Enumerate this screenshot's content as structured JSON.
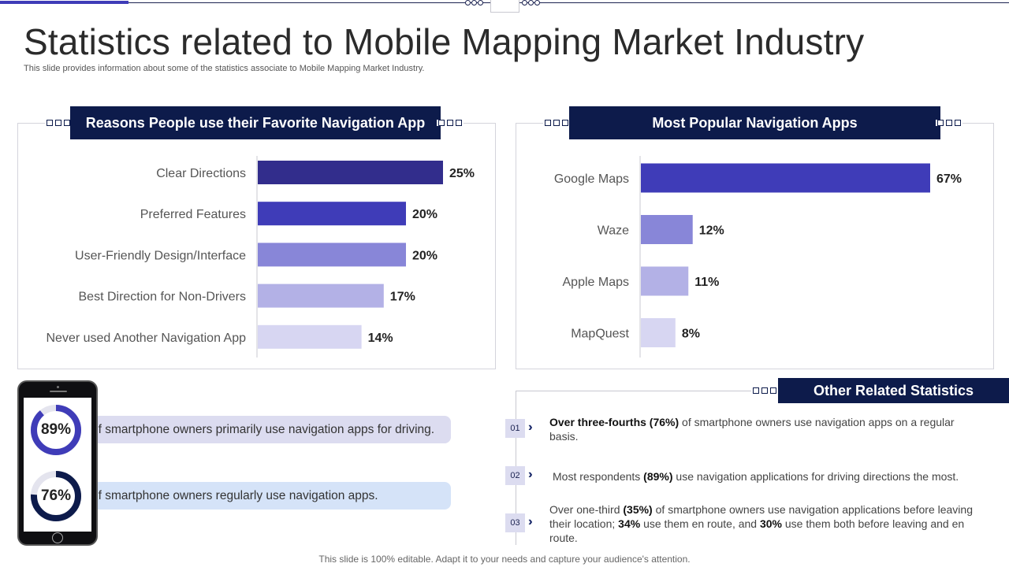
{
  "page": {
    "title": "Statistics related to Mobile Mapping Market Industry",
    "subtitle": "This slide provides information about some of the statistics associate to Mobile Mapping Market Industry.",
    "footer": "This slide is 100% editable. Adapt it to your needs and capture your audience's attention."
  },
  "colors": {
    "navy": "#0d1b4b",
    "shade1": "#322d8c",
    "shade2": "#3f3cb8",
    "shade3": "#8886d8",
    "shade4": "#b3b1e6",
    "shade5": "#d7d6f2"
  },
  "chart_data": [
    {
      "type": "bar",
      "orientation": "horizontal",
      "title": "Reasons People use their Favorite Navigation App",
      "categories": [
        "Clear Directions",
        "Preferred Features",
        "User-Friendly Design/Interface",
        "Best Direction for Non-Drivers",
        "Never used Another Navigation App"
      ],
      "values": [
        25,
        20,
        20,
        17,
        14
      ],
      "labels": [
        "25%",
        "20%",
        "20%",
        "17%",
        "14%"
      ],
      "colors": [
        "#322d8c",
        "#3f3cb8",
        "#8886d8",
        "#b3b1e6",
        "#d7d6f2"
      ],
      "unit": "%",
      "xlim": [
        0,
        25
      ],
      "grid": false
    },
    {
      "type": "bar",
      "orientation": "horizontal",
      "title": "Most Popular Navigation Apps",
      "categories": [
        "Google Maps",
        "Waze",
        "Apple Maps",
        "MapQuest"
      ],
      "values": [
        67,
        12,
        11,
        8
      ],
      "labels": [
        "67%",
        "12%",
        "11%",
        "8%"
      ],
      "colors": [
        "#3f3cb8",
        "#8886d8",
        "#b3b1e6",
        "#d7d6f2"
      ],
      "unit": "%",
      "xlim": [
        0,
        67
      ],
      "grid": false
    }
  ],
  "phone_stats": [
    {
      "value": 89,
      "label": "89%",
      "text": "of smartphone owners primarily use navigation apps for driving."
    },
    {
      "value": 76,
      "label": "76%",
      "text": "of smartphone owners regularly use navigation apps."
    }
  ],
  "other_stats": {
    "title": "Other Related Statistics",
    "items": [
      {
        "num": "01",
        "bold1": "Over three-fourths (76%)",
        "text1": " of smartphone owners use navigation apps on a regular basis."
      },
      {
        "num": "02",
        "text0": "Most respondents ",
        "bold1": "(89%)",
        "text1": " use navigation applications for driving directions the most."
      },
      {
        "num": "03",
        "text0": "Over one-third ",
        "bold1": "(35%)",
        "text1": " of smartphone owners use navigation applications before leaving their location; ",
        "bold2": "34%",
        "text2": " use them en route, and ",
        "bold3": "30%",
        "text3": " use them both before leaving and en route."
      }
    ]
  }
}
